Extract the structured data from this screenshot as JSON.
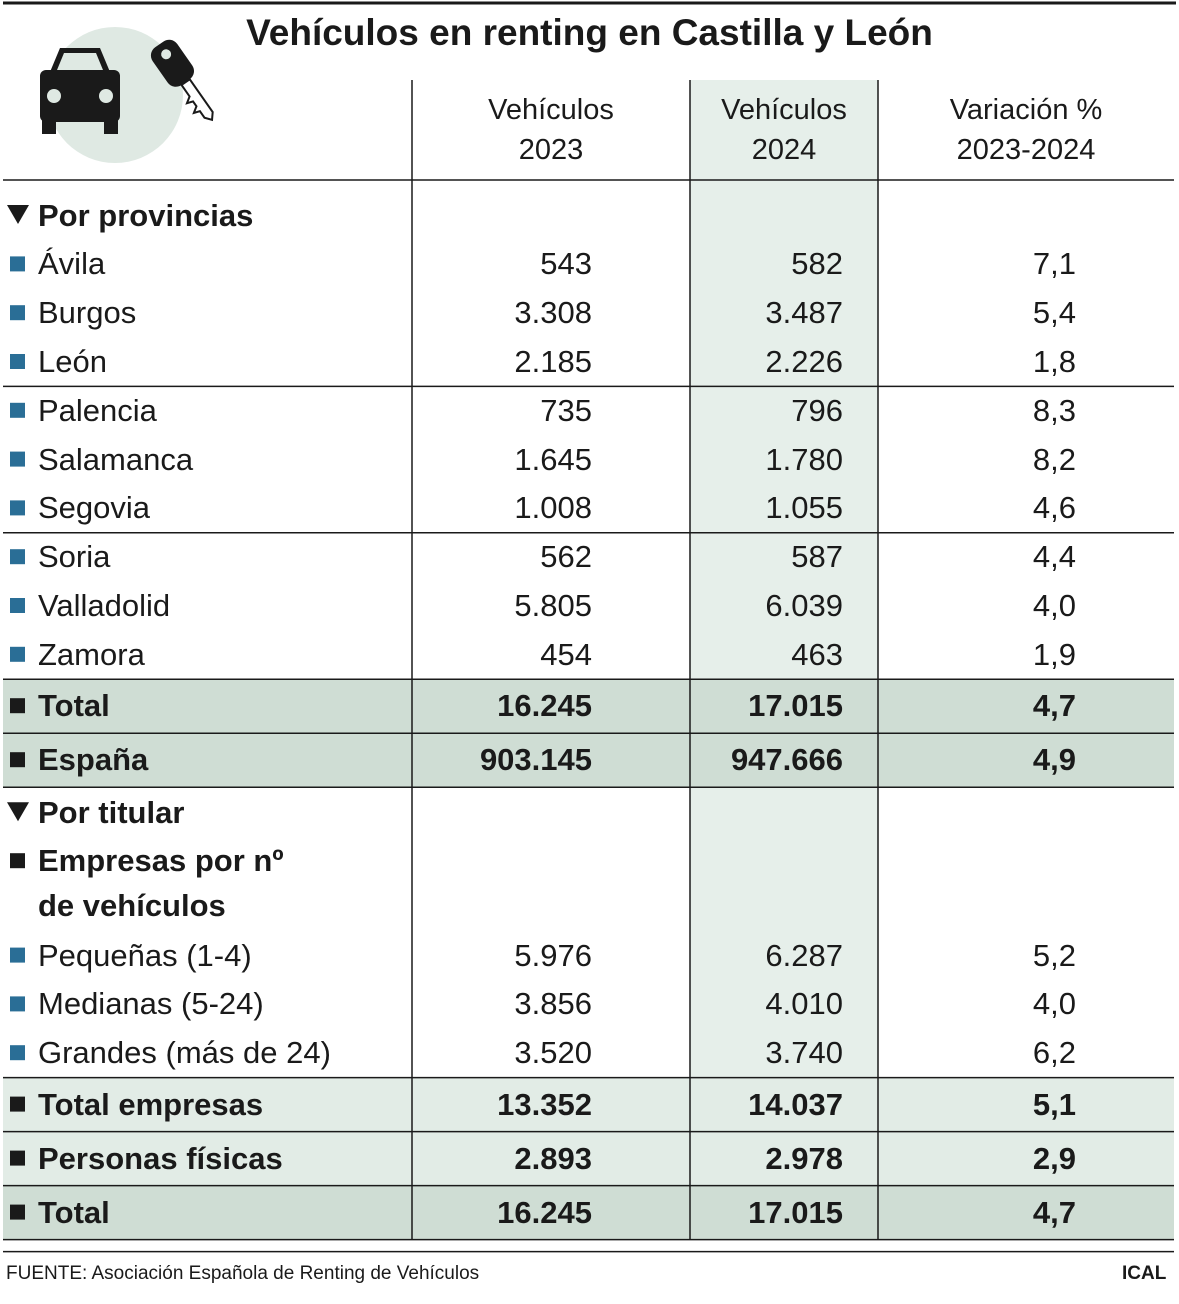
{
  "title": "Vehículos en renting en Castilla y León",
  "table": {
    "header": [
      [
        "Vehículos",
        "2023"
      ],
      [
        "Vehículos",
        "2024"
      ],
      [
        "Variación %",
        "2023-2024"
      ]
    ],
    "sections": [
      {
        "title": "Por provincias",
        "groups": [
          [
            {
              "kind": "item",
              "label": [
                "Ávila"
              ],
              "values": [
                "543",
                "582",
                "7,1"
              ]
            },
            {
              "kind": "item",
              "label": [
                "Burgos"
              ],
              "values": [
                "3.308",
                "3.487",
                "5,4"
              ]
            },
            {
              "kind": "item",
              "label": [
                "León"
              ],
              "values": [
                "2.185",
                "2.226",
                "1,8"
              ]
            }
          ],
          [
            {
              "kind": "item",
              "label": [
                "Palencia"
              ],
              "values": [
                "735",
                "796",
                "8,3"
              ]
            },
            {
              "kind": "item",
              "label": [
                "Salamanca"
              ],
              "values": [
                "1.645",
                "1.780",
                "8,2"
              ]
            },
            {
              "kind": "item",
              "label": [
                "Segovia"
              ],
              "values": [
                "1.008",
                "1.055",
                "4,6"
              ]
            }
          ],
          [
            {
              "kind": "item",
              "label": [
                "Soria"
              ],
              "values": [
                "562",
                "587",
                "4,4"
              ]
            },
            {
              "kind": "item",
              "label": [
                "Valladolid"
              ],
              "values": [
                "5.805",
                "6.039",
                "4,0"
              ]
            },
            {
              "kind": "item",
              "label": [
                "Zamora"
              ],
              "values": [
                "454",
                "463",
                "1,9"
              ]
            }
          ],
          [
            {
              "kind": "total",
              "label": [
                "Total"
              ],
              "values": [
                "16.245",
                "17.015",
                "4,7"
              ]
            }
          ],
          [
            {
              "kind": "total",
              "label": [
                "España"
              ],
              "values": [
                "903.145",
                "947.666",
                "4,9"
              ]
            }
          ]
        ]
      },
      {
        "title": "Por titular",
        "groups": [
          [
            {
              "kind": "subhead",
              "label": [
                "Empresas por nº",
                "de vehículos"
              ],
              "values": []
            },
            {
              "kind": "item",
              "label": [
                "Pequeñas (1-4)"
              ],
              "values": [
                "5.976",
                "6.287",
                "5,2"
              ]
            },
            {
              "kind": "item",
              "label": [
                "Medianas (5-24)"
              ],
              "values": [
                "3.856",
                "4.010",
                "4,0"
              ]
            },
            {
              "kind": "item",
              "label": [
                "Grandes (más de 24)"
              ],
              "values": [
                "3.520",
                "3.740",
                "6,2"
              ]
            }
          ],
          [
            {
              "kind": "subtotal",
              "label": [
                "Total empresas"
              ],
              "values": [
                "13.352",
                "14.037",
                "5,1"
              ]
            }
          ],
          [
            {
              "kind": "subtotal",
              "label": [
                "Personas físicas"
              ],
              "values": [
                "2.893",
                "2.978",
                "2,9"
              ]
            }
          ],
          [
            {
              "kind": "total",
              "label": [
                "Total"
              ],
              "values": [
                "16.245",
                "17.015",
                "4,7"
              ]
            }
          ]
        ]
      }
    ]
  },
  "footer": {
    "source": "FUENTE: Asociación Española de Renting de Vehículos",
    "brand": "ICAL"
  }
}
